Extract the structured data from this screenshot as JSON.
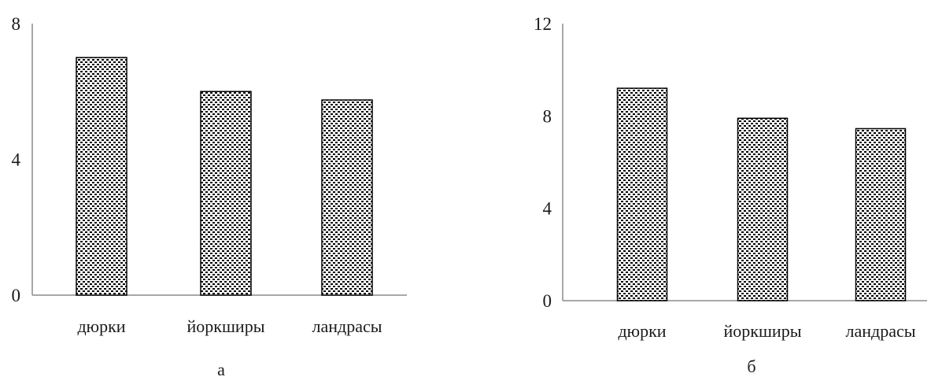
{
  "chart_data": [
    {
      "type": "bar",
      "panel_label": "а",
      "categories": [
        "дюрки",
        "йоркширы",
        "ландрасы"
      ],
      "values": [
        7.0,
        6.0,
        5.75
      ],
      "yticks": [
        "0",
        "4",
        "8"
      ],
      "ylim": [
        0,
        8
      ],
      "grid": false,
      "legend": "none",
      "bar_fill": "#000000"
    },
    {
      "type": "bar",
      "panel_label": "б",
      "categories": [
        "дюрки",
        "йоркширы",
        "ландрасы"
      ],
      "values": [
        9.2,
        7.9,
        7.45
      ],
      "yticks": [
        "0",
        "4",
        "8",
        "12"
      ],
      "ylim": [
        0,
        12
      ],
      "grid": false,
      "legend": "none",
      "bar_fill": "#000000"
    }
  ]
}
